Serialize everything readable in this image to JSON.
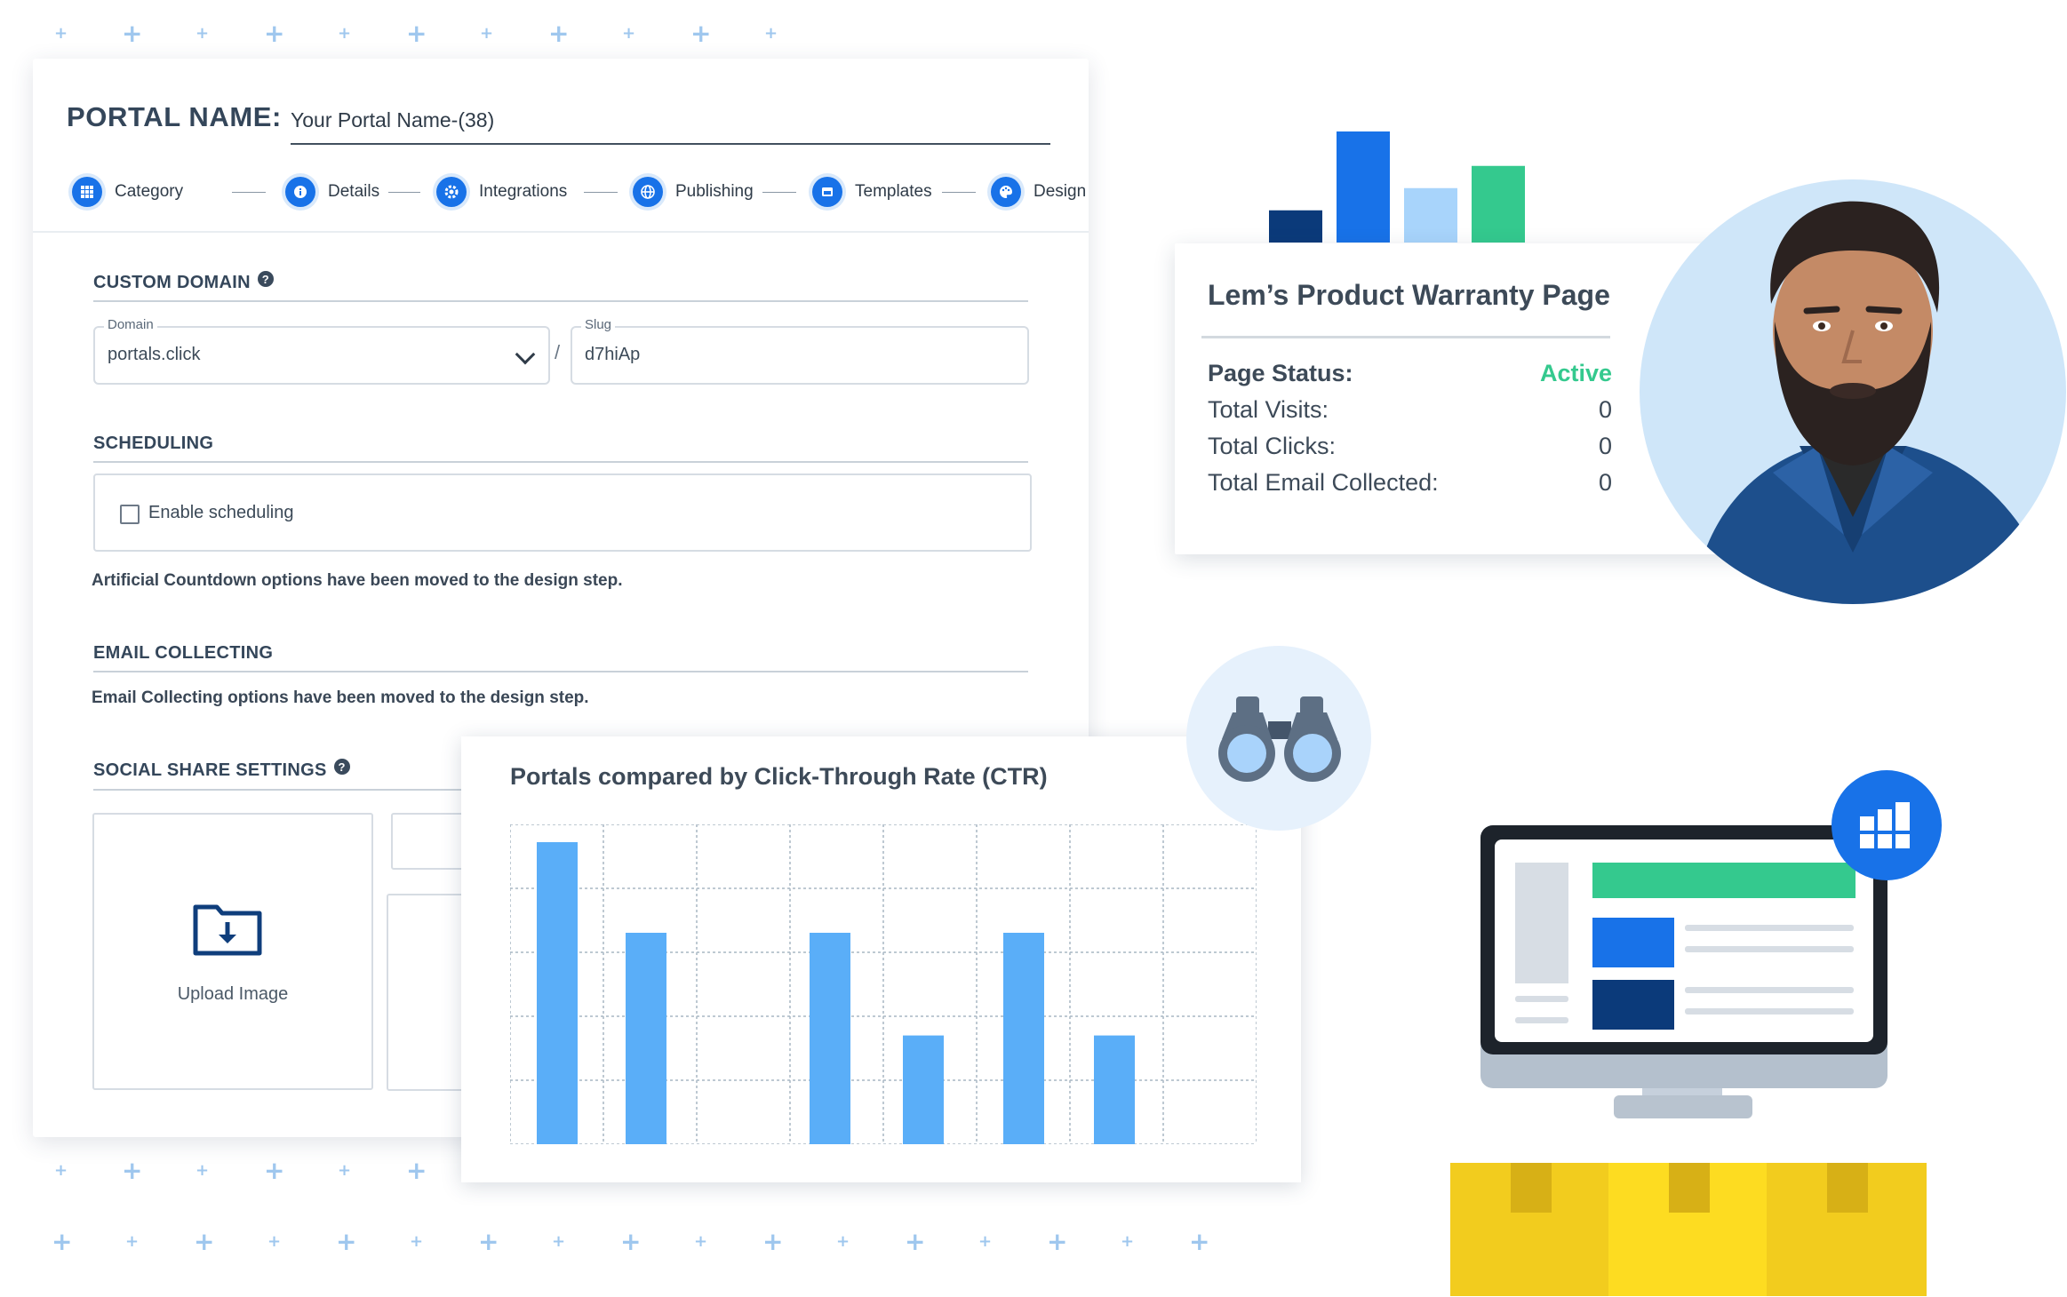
{
  "form": {
    "portal_name_label": "PORTAL NAME:",
    "portal_name_value": "Your Portal Name-(38)",
    "steps": [
      {
        "label": "Category",
        "icon": "grid-icon"
      },
      {
        "label": "Details",
        "icon": "info-icon"
      },
      {
        "label": "Integrations",
        "icon": "gear-icon"
      },
      {
        "label": "Publishing",
        "icon": "globe-icon"
      },
      {
        "label": "Templates",
        "icon": "window-icon"
      },
      {
        "label": "Design",
        "icon": "palette-icon"
      }
    ],
    "custom_domain": {
      "title": "CUSTOM DOMAIN",
      "domain_label": "Domain",
      "domain_value": "portals.click",
      "separator": "/",
      "slug_label": "Slug",
      "slug_value": "d7hiAp"
    },
    "scheduling": {
      "title": "SCHEDULING",
      "checkbox_label": "Enable scheduling",
      "checked": false
    },
    "countdown_note": "Artificial Countdown options have been moved to the design step.",
    "email_collecting": {
      "title": "EMAIL COLLECTING",
      "note": "Email Collecting options have been moved to the design step."
    },
    "social_share": {
      "title": "SOCIAL SHARE SETTINGS",
      "upload_label": "Upload Image"
    }
  },
  "chart_data": {
    "type": "bar",
    "title": "Portals compared by Click-Through Rate (CTR)",
    "categories": [
      "",
      "",
      "",
      "",
      "",
      "",
      "",
      ""
    ],
    "values": [
      5,
      3.5,
      0,
      3.5,
      1.8,
      3.5,
      1.8,
      0
    ],
    "ylim": [
      0,
      5
    ],
    "grid": true,
    "color": "#5aaef8"
  },
  "mini_chart": {
    "values": [
      0.29,
      1.0,
      0.49,
      0.69
    ],
    "colors": [
      "#0b3a7a",
      "#1872e8",
      "#a8d4fb",
      "#34c98e"
    ]
  },
  "stats": {
    "title": "Lem’s Product Warranty Page",
    "status_label": "Page Status:",
    "status_value": "Active",
    "rows": [
      {
        "label": "Total Visits:",
        "value": "0"
      },
      {
        "label": "Total Clicks:",
        "value": "0"
      },
      {
        "label": "Total Email Collected:",
        "value": "0"
      }
    ]
  },
  "colors": {
    "accent": "#1872e8",
    "active": "#34c98e",
    "bar": "#5aaef8",
    "navy": "#0b3a7a",
    "box": "#f2cc1e"
  }
}
